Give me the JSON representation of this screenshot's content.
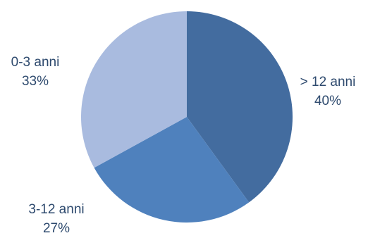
{
  "chart_data": {
    "type": "pie",
    "categories": [
      "> 12 anni",
      "3-12 anni",
      "0-3 anni"
    ],
    "values": [
      40,
      27,
      33
    ],
    "value_labels": [
      "40%",
      "27%",
      "33%"
    ],
    "colors": [
      "#436c9f",
      "#4f81bd",
      "#a9bbdf"
    ],
    "start_angle_deg": 0,
    "direction": "clockwise",
    "legend": "none"
  }
}
